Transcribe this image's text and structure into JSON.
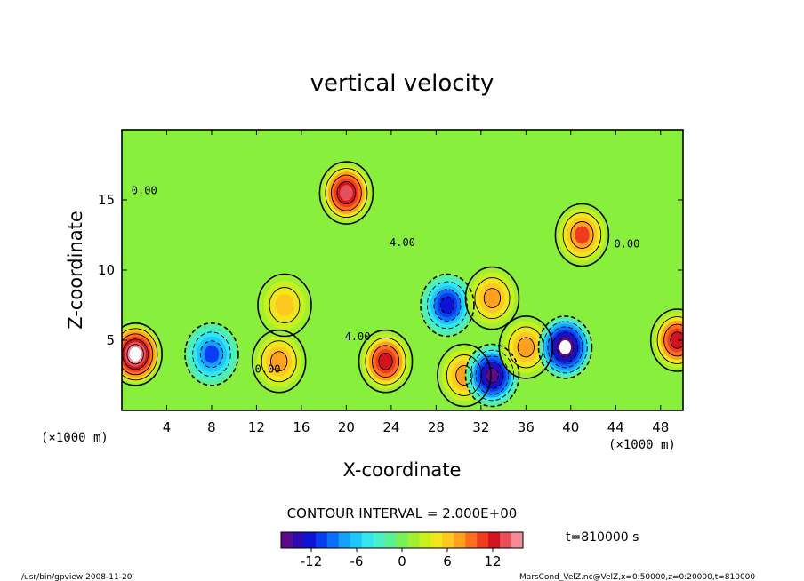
{
  "chart_data": {
    "type": "heatmap",
    "title": "vertical velocity",
    "xlabel": "X-coordinate",
    "ylabel": "Z-coordinate",
    "x_units_left": "(×1000 m)",
    "x_units_right": "(×1000 m)",
    "xlim": [
      0,
      50
    ],
    "ylim": [
      0,
      20
    ],
    "x_ticks": [
      4,
      8,
      12,
      16,
      20,
      24,
      28,
      32,
      36,
      40,
      44,
      48
    ],
    "y_ticks": [
      5,
      10,
      15
    ],
    "contour_interval_text": "CONTOUR INTERVAL = 2.000E+00",
    "contour_labels": [
      "0.00",
      "4.00"
    ],
    "colorbar": {
      "min": -16,
      "max": 16,
      "ticks": [
        -12,
        -6,
        0,
        6,
        12
      ],
      "colors": [
        "#5c0a8c",
        "#2e0ab4",
        "#0a14d2",
        "#0a3cf0",
        "#0a6eff",
        "#14a0ff",
        "#1ec8ff",
        "#32e6f0",
        "#46f0c8",
        "#5af096",
        "#78f05a",
        "#a0f032",
        "#c8f01e",
        "#f0e61e",
        "#ffc81e",
        "#ffa01e",
        "#ff6e1e",
        "#f03c1e",
        "#d2141e",
        "#e6505a",
        "#f08c96"
      ]
    },
    "time_label": "t=810000 s",
    "features": [
      {
        "x": 1.2,
        "z": 4.0,
        "w": "max",
        "sign": "positive"
      },
      {
        "x": 8.0,
        "z": 4.0,
        "w": -10,
        "sign": "negative"
      },
      {
        "x": 14.5,
        "z": 7.5,
        "w": 6,
        "sign": "positive"
      },
      {
        "x": 14.0,
        "z": 3.5,
        "w": 8,
        "sign": "positive"
      },
      {
        "x": 20.0,
        "z": 15.5,
        "w": 14,
        "sign": "positive"
      },
      {
        "x": 23.5,
        "z": 3.5,
        "w": 12,
        "sign": "positive"
      },
      {
        "x": 29.0,
        "z": 7.5,
        "w": -12,
        "sign": "negative"
      },
      {
        "x": 30.5,
        "z": 2.5,
        "w": 8,
        "sign": "positive"
      },
      {
        "x": 33.0,
        "z": 8.0,
        "w": 8,
        "sign": "positive"
      },
      {
        "x": 33.0,
        "z": 2.5,
        "w": -16,
        "sign": "negative"
      },
      {
        "x": 36.0,
        "z": 4.5,
        "w": 8,
        "sign": "positive"
      },
      {
        "x": 39.5,
        "z": 4.5,
        "w": "min",
        "sign": "negative"
      },
      {
        "x": 41.0,
        "z": 12.5,
        "w": 10,
        "sign": "positive"
      },
      {
        "x": 49.5,
        "z": 5.0,
        "w": 12,
        "sign": "positive"
      }
    ]
  },
  "footer": {
    "left": "/usr/bin/gpview   2008-11-20",
    "right": "MarsCond_VelZ.nc@VelZ,x=0:50000,z=0:20000,t=810000"
  }
}
